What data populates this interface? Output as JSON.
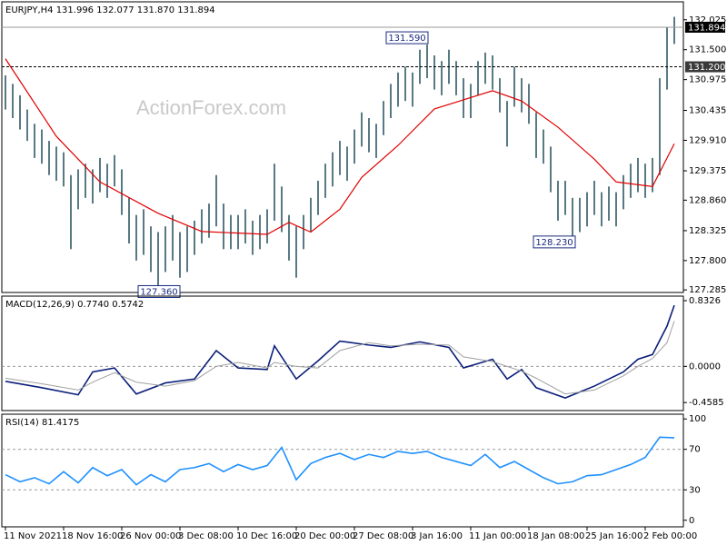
{
  "chart_data": [
    {
      "type": "ohlc",
      "title": "EURJPY,H4  131.996 132.077 131.870 131.894",
      "watermark": "ActionForex.com",
      "color": "#2f5866",
      "xlim": [
        -0.5,
        93.25
      ],
      "ylim": [
        127.24,
        132.34
      ],
      "yticks": [
        {
          "value": 132.025,
          "label": "132.025"
        },
        {
          "value": 131.5,
          "label": "131.500"
        },
        130.975,
        130.435,
        {
          "value": 129.91,
          "label": "129.910"
        },
        129.375,
        {
          "value": 128.86,
          "label": "128.860"
        },
        128.325,
        {
          "value": 127.8,
          "label": "127.800"
        },
        127.285
      ],
      "x": [
        0,
        1,
        2,
        3,
        4,
        5,
        6,
        7,
        8,
        9,
        10,
        11,
        12,
        13,
        14,
        15,
        16,
        17,
        18,
        19,
        20,
        21,
        22,
        23,
        24,
        25,
        26,
        27,
        28,
        29,
        30,
        31,
        32,
        33,
        34,
        35,
        36,
        37,
        38,
        39,
        40,
        41,
        42,
        43,
        44,
        45,
        46,
        47,
        48,
        49,
        50,
        51,
        52,
        53,
        54,
        55,
        56,
        57,
        58,
        59,
        60,
        61,
        62,
        63,
        64,
        65,
        66,
        67,
        68,
        69,
        70,
        71,
        72,
        73,
        74,
        75,
        76,
        77,
        78,
        79,
        80,
        81,
        82,
        83,
        84,
        85,
        86,
        87,
        88,
        89,
        90,
        91,
        92
      ],
      "high": [
        131.05,
        130.9,
        130.7,
        130.45,
        130.2,
        130.1,
        129.9,
        129.8,
        129.7,
        129.3,
        129.4,
        129.5,
        129.4,
        129.6,
        129.5,
        129.65,
        129.4,
        128.9,
        128.6,
        128.7,
        128.4,
        128.3,
        128.4,
        128.6,
        128.3,
        128.4,
        128.5,
        128.7,
        128.8,
        129.3,
        128.8,
        128.6,
        128.6,
        128.7,
        128.5,
        128.6,
        128.7,
        129.5,
        129.1,
        128.6,
        128.4,
        128.6,
        128.9,
        129.2,
        129.5,
        129.7,
        129.9,
        129.8,
        130.1,
        130.4,
        130.3,
        130.2,
        130.6,
        130.9,
        131.1,
        131.2,
        131.1,
        131.5,
        131.59,
        131.4,
        131.3,
        131.5,
        131.3,
        131.0,
        130.9,
        131.3,
        131.45,
        131.4,
        131.0,
        130.6,
        131.2,
        131.0,
        130.9,
        130.4,
        130.1,
        129.8,
        129.2,
        129.2,
        128.9,
        128.9,
        129.0,
        129.2,
        129.0,
        129.1,
        129.0,
        129.3,
        129.5,
        129.6,
        129.5,
        129.6,
        131.0,
        131.9,
        132.077
      ],
      "low": [
        130.45,
        130.3,
        130.1,
        129.9,
        129.6,
        129.5,
        129.3,
        129.2,
        129.1,
        128.0,
        128.7,
        128.9,
        128.8,
        129.0,
        128.9,
        129.1,
        128.6,
        128.1,
        127.8,
        127.9,
        127.6,
        127.36,
        127.6,
        127.8,
        127.5,
        127.6,
        127.9,
        128.1,
        128.2,
        128.4,
        128.0,
        128.0,
        128.0,
        128.1,
        127.9,
        128.0,
        128.1,
        128.5,
        128.3,
        127.8,
        127.5,
        128.0,
        128.3,
        128.6,
        128.9,
        129.1,
        129.3,
        129.2,
        129.5,
        129.8,
        129.7,
        129.6,
        130.0,
        130.3,
        130.5,
        130.6,
        130.5,
        130.9,
        131.0,
        130.8,
        130.7,
        130.9,
        130.7,
        130.3,
        130.3,
        130.7,
        130.9,
        130.8,
        130.4,
        129.8,
        130.5,
        130.4,
        130.2,
        129.6,
        129.5,
        129.0,
        128.5,
        128.6,
        128.23,
        128.3,
        128.4,
        128.6,
        128.4,
        128.5,
        128.4,
        128.7,
        128.9,
        129.0,
        128.9,
        129.0,
        129.3,
        130.8,
        131.6
      ],
      "overlays": [
        {
          "color": "#e00000",
          "x": [
            0,
            7,
            13,
            21,
            27,
            36,
            39,
            42,
            46,
            49,
            54,
            59,
            67,
            71,
            76,
            81,
            84,
            89,
            92
          ],
          "values": [
            131.34,
            129.98,
            129.18,
            128.63,
            128.31,
            128.26,
            128.47,
            128.3,
            128.7,
            129.26,
            129.82,
            130.46,
            130.78,
            130.6,
            130.14,
            129.58,
            129.18,
            129.1,
            129.85
          ]
        }
      ],
      "price_lines": [
        {
          "value": 131.894,
          "label": "131.894",
          "style": "solid"
        },
        {
          "value": 131.2,
          "label": "131.200",
          "style": "dashed"
        }
      ],
      "annotations": [
        {
          "value": 131.59,
          "label": "131.590",
          "side": "above"
        },
        {
          "value": 128.23,
          "label": "128.230",
          "side": "below"
        },
        {
          "value": 127.36,
          "label": "127.360",
          "side": "below"
        }
      ]
    },
    {
      "type": "line",
      "title": "MACD(12,26,9) 0.7740 0.5742",
      "xlim": [
        -0.5,
        93.25
      ],
      "ylim": [
        -0.56,
        0.89
      ],
      "yticks": [
        0.8326,
        {
          "value": 0,
          "label": "0.0000"
        },
        -0.4585
      ],
      "levels": [
        0
      ],
      "series": [
        {
          "color": "#0b1f7a",
          "x": [
            0,
            5,
            10,
            12,
            15,
            18,
            22,
            26,
            29,
            32,
            36,
            37,
            40,
            43,
            46,
            50,
            53,
            57,
            61,
            63,
            67,
            69,
            71,
            73,
            77,
            81,
            85,
            87,
            89,
            91,
            92
          ],
          "values": [
            -0.19,
            -0.27,
            -0.36,
            -0.07,
            -0.02,
            -0.35,
            -0.21,
            -0.16,
            0.2,
            -0.02,
            -0.04,
            0.26,
            -0.16,
            0.07,
            0.32,
            0.27,
            0.24,
            0.31,
            0.24,
            -0.02,
            0.09,
            -0.16,
            -0.04,
            -0.27,
            -0.4,
            -0.25,
            -0.07,
            0.09,
            0.15,
            0.51,
            0.774
          ]
        },
        {
          "color": "#a0a0a0",
          "x": [
            0,
            5,
            10,
            12,
            15,
            18,
            22,
            26,
            29,
            32,
            36,
            37,
            40,
            43,
            46,
            50,
            53,
            57,
            61,
            63,
            67,
            69,
            71,
            73,
            77,
            81,
            85,
            87,
            89,
            91,
            92
          ],
          "values": [
            -0.15,
            -0.22,
            -0.3,
            -0.2,
            -0.08,
            -0.2,
            -0.25,
            -0.18,
            0.0,
            0.05,
            -0.02,
            0.05,
            0.0,
            -0.02,
            0.2,
            0.3,
            0.26,
            0.28,
            0.27,
            0.12,
            0.06,
            0.0,
            -0.06,
            -0.15,
            -0.35,
            -0.3,
            -0.12,
            0.0,
            0.1,
            0.3,
            0.5742
          ]
        }
      ]
    },
    {
      "type": "line",
      "title": "RSI(14) 81.4175",
      "xlim": [
        -0.5,
        93.25
      ],
      "ylim": [
        -6.5,
        104.7
      ],
      "yticks": [
        100,
        70,
        30,
        0
      ],
      "levels": [
        70,
        30
      ],
      "xticks": [
        {
          "value": 0,
          "label": "11 Nov 2021"
        },
        {
          "value": 8,
          "label": "18 Nov 16:00"
        },
        {
          "value": 16,
          "label": "26 Nov 00:00"
        },
        {
          "value": 24,
          "label": "3 Dec 08:00"
        },
        {
          "value": 32,
          "label": "10 Dec 16:00"
        },
        {
          "value": 40,
          "label": "20 Dec 00:00"
        },
        {
          "value": 48,
          "label": "27 Dec 08:00"
        },
        {
          "value": 56,
          "label": "3 Jan 16:00"
        },
        {
          "value": 64,
          "label": "11 Jan 00:00"
        },
        {
          "value": 72,
          "label": "18 Jan 08:00"
        },
        {
          "value": 80,
          "label": "25 Jan 16:00"
        },
        {
          "value": 88,
          "label": "2 Feb 00:00"
        }
      ],
      "series": [
        {
          "color": "#1e90ff",
          "x": [
            0,
            2,
            4,
            6,
            8,
            10,
            12,
            14,
            16,
            18,
            20,
            22,
            24,
            26,
            28,
            30,
            32,
            34,
            36,
            38,
            40,
            42,
            44,
            46,
            48,
            50,
            52,
            54,
            56,
            58,
            60,
            62,
            64,
            66,
            68,
            70,
            72,
            74,
            76,
            78,
            80,
            82,
            84,
            86,
            88,
            90,
            92
          ],
          "values": [
            45,
            38,
            42,
            36,
            48,
            37,
            52,
            44,
            50,
            35,
            45,
            38,
            50,
            52,
            56,
            48,
            55,
            50,
            54,
            72,
            40,
            56,
            62,
            66,
            60,
            65,
            62,
            68,
            66,
            68,
            62,
            58,
            54,
            65,
            52,
            58,
            50,
            42,
            36,
            38,
            44,
            45,
            50,
            55,
            62,
            82,
            81.4175
          ]
        }
      ]
    }
  ]
}
